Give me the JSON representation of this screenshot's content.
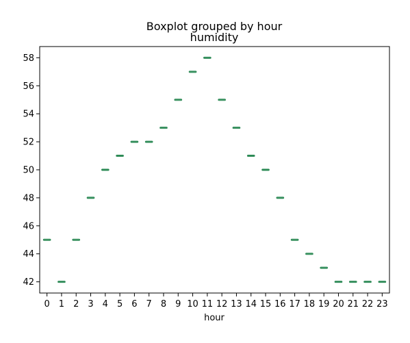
{
  "chart_data": {
    "type": "boxplot",
    "suptitle": "Boxplot grouped by hour",
    "title": "humidity",
    "xlabel": "hour",
    "ylabel": "",
    "categories": [
      "0",
      "1",
      "2",
      "3",
      "4",
      "5",
      "6",
      "7",
      "8",
      "9",
      "10",
      "11",
      "12",
      "13",
      "14",
      "15",
      "16",
      "17",
      "18",
      "19",
      "20",
      "21",
      "22",
      "23"
    ],
    "values": [
      45,
      42,
      45,
      48,
      50,
      51,
      52,
      52,
      53,
      55,
      57,
      58,
      55,
      53,
      51,
      50,
      48,
      45,
      44,
      43,
      42,
      42,
      42,
      42
    ],
    "yticks": [
      42,
      44,
      46,
      48,
      50,
      52,
      54,
      56,
      58
    ],
    "ylim": [
      41.2,
      58.8
    ],
    "grid": false,
    "box_color": "#2e8b57",
    "frame_color": "#000000"
  }
}
